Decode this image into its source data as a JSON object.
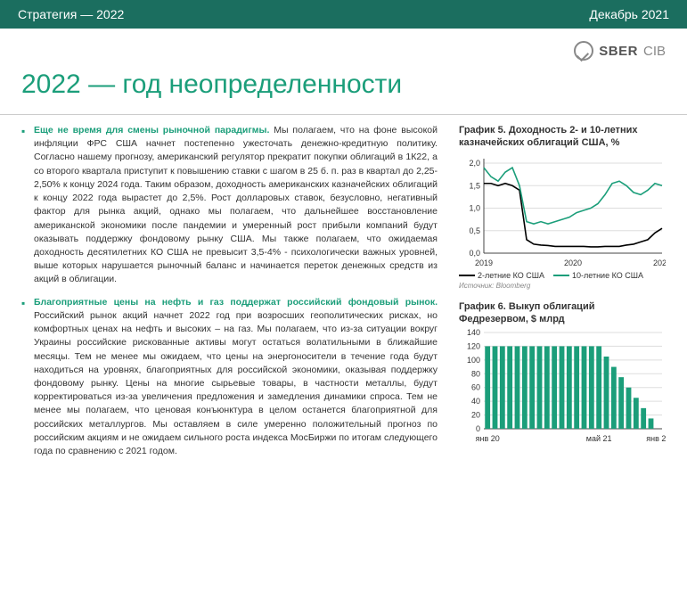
{
  "header": {
    "title": "Стратегия — 2022",
    "date": "Декабрь 2021"
  },
  "brand": {
    "name": "SBER",
    "sub": "CIB"
  },
  "page_title": "2022 — год неопределенности",
  "body": {
    "p1_lead": "Еще не время для смены рыночной парадигмы.",
    "p1_text": " Мы полагаем, что на фоне высокой инфляции ФРС США начнет постепенно ужесточать денежно-кредитную политику. Согласно нашему прогнозу, американский регулятор прекратит покупки облигаций в 1К22, а со второго квартала приступит к повышению ставки с шагом в 25 б. п. раз в квартал до 2,25-2,50% к концу 2024 года. Таким образом, доходность американских казначейских облигаций к концу 2022 года вырастет до 2,5%. Рост долларовых ставок, безусловно, негативный фактор для рынка акций, однако мы полагаем, что дальнейшее восстановление американской экономики после пандемии и умеренный рост прибыли компаний будут оказывать поддержку фондовому рынку США. Мы также полагаем, что ожидаемая доходность десятилетних КО США не превысит 3,5-4% - психологически важных уровней, выше которых нарушается рыночный баланс и начинается переток денежных средств из акций в облигации.",
    "p2_lead": "Благоприятные цены на нефть и газ поддержат российский фондовый рынок.",
    "p2_text": " Российский рынок акций начнет 2022 год при возросших геополитических рисках, но комфортных ценах на нефть и высоких – на газ. Мы полагаем, что из-за ситуации вокруг Украины российские рискованные активы могут остаться волатильными в ближайшие месяцы. Тем не менее мы ожидаем, что цены на энергоносители в течение года будут находиться на уровнях, благоприятных для российской экономики, оказывая поддержку фондовому рынку. Цены на многие сырьевые товары, в частности металлы, будут корректироваться из-за увеличения предложения и замедления динамики спроса. Тем не менее мы полагаем, что ценовая конъюнктура в целом останется благоприятной для российских металлургов. Мы оставляем в силе умеренно положительный прогноз по российским акциям и не ожидаем сильного роста индекса МосБиржи по итогам следующего года по сравнению с 2021 годом."
  },
  "chart5": {
    "title": "График 5. Доходность 2- и 10-летних казначейских облигаций США, %",
    "type": "line",
    "x_labels": [
      "2019",
      "2020",
      "2021"
    ],
    "y_ticks": [
      0.0,
      0.5,
      1.0,
      1.5,
      2.0
    ],
    "ylim": [
      0.0,
      2.1
    ],
    "series": [
      {
        "name": "2-летние КО США",
        "color": "#000000",
        "y": [
          1.55,
          1.55,
          1.5,
          1.55,
          1.5,
          1.4,
          0.3,
          0.2,
          0.18,
          0.17,
          0.15,
          0.15,
          0.15,
          0.15,
          0.15,
          0.14,
          0.14,
          0.15,
          0.15,
          0.15,
          0.18,
          0.2,
          0.25,
          0.3,
          0.45,
          0.55
        ]
      },
      {
        "name": "10-летние КО США",
        "color": "#1b9e7a",
        "y": [
          1.9,
          1.7,
          1.6,
          1.8,
          1.9,
          1.5,
          0.7,
          0.65,
          0.7,
          0.65,
          0.7,
          0.75,
          0.8,
          0.9,
          0.95,
          1.0,
          1.1,
          1.3,
          1.55,
          1.6,
          1.5,
          1.35,
          1.3,
          1.4,
          1.55,
          1.5
        ]
      }
    ],
    "legend": [
      "2-летние КО США",
      "10-летние КО США"
    ],
    "legend_colors": [
      "#000000",
      "#1b9e7a"
    ],
    "source": "Источник: Bloomberg",
    "background": "#ffffff",
    "grid_color": "#dddddd",
    "axis_color": "#444444",
    "tick_fontsize": 9
  },
  "chart6": {
    "title": "График 6. Выкуп облигаций Федрезервом, $ млрд",
    "type": "bar",
    "x_labels": [
      "янв 20",
      "май 21",
      "янв 22"
    ],
    "y_ticks": [
      0,
      20,
      40,
      60,
      80,
      100,
      120,
      140
    ],
    "ylim": [
      0,
      140
    ],
    "values": [
      120,
      120,
      120,
      120,
      120,
      120,
      120,
      120,
      120,
      120,
      120,
      120,
      120,
      120,
      120,
      120,
      105,
      90,
      75,
      60,
      45,
      30,
      15,
      0
    ],
    "bar_color": "#1b9e7a",
    "background": "#ffffff",
    "grid_color": "#dddddd",
    "axis_color": "#444444"
  }
}
